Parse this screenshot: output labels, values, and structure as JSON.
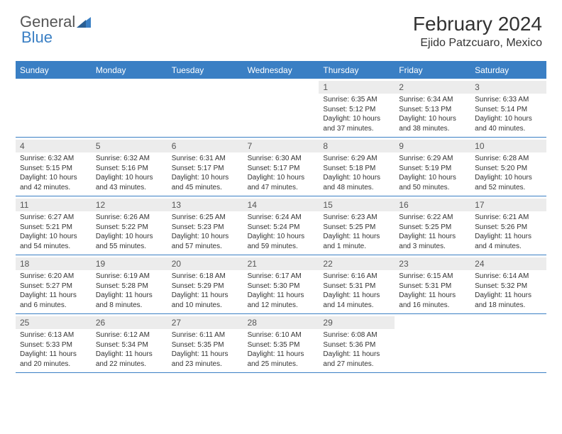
{
  "brand": {
    "part1": "General",
    "part2": "Blue"
  },
  "title": "February 2024",
  "location": "Ejido Patzcuaro, Mexico",
  "colors": {
    "accent": "#3a7fc4",
    "row_shade": "#ececec",
    "text": "#333333",
    "bg": "#ffffff"
  },
  "daysOfWeek": [
    "Sunday",
    "Monday",
    "Tuesday",
    "Wednesday",
    "Thursday",
    "Friday",
    "Saturday"
  ],
  "weeks": [
    [
      null,
      null,
      null,
      null,
      {
        "n": "1",
        "sr": "Sunrise: 6:35 AM",
        "ss": "Sunset: 5:12 PM",
        "dl1": "Daylight: 10 hours",
        "dl2": "and 37 minutes."
      },
      {
        "n": "2",
        "sr": "Sunrise: 6:34 AM",
        "ss": "Sunset: 5:13 PM",
        "dl1": "Daylight: 10 hours",
        "dl2": "and 38 minutes."
      },
      {
        "n": "3",
        "sr": "Sunrise: 6:33 AM",
        "ss": "Sunset: 5:14 PM",
        "dl1": "Daylight: 10 hours",
        "dl2": "and 40 minutes."
      }
    ],
    [
      {
        "n": "4",
        "sr": "Sunrise: 6:32 AM",
        "ss": "Sunset: 5:15 PM",
        "dl1": "Daylight: 10 hours",
        "dl2": "and 42 minutes."
      },
      {
        "n": "5",
        "sr": "Sunrise: 6:32 AM",
        "ss": "Sunset: 5:16 PM",
        "dl1": "Daylight: 10 hours",
        "dl2": "and 43 minutes."
      },
      {
        "n": "6",
        "sr": "Sunrise: 6:31 AM",
        "ss": "Sunset: 5:17 PM",
        "dl1": "Daylight: 10 hours",
        "dl2": "and 45 minutes."
      },
      {
        "n": "7",
        "sr": "Sunrise: 6:30 AM",
        "ss": "Sunset: 5:17 PM",
        "dl1": "Daylight: 10 hours",
        "dl2": "and 47 minutes."
      },
      {
        "n": "8",
        "sr": "Sunrise: 6:29 AM",
        "ss": "Sunset: 5:18 PM",
        "dl1": "Daylight: 10 hours",
        "dl2": "and 48 minutes."
      },
      {
        "n": "9",
        "sr": "Sunrise: 6:29 AM",
        "ss": "Sunset: 5:19 PM",
        "dl1": "Daylight: 10 hours",
        "dl2": "and 50 minutes."
      },
      {
        "n": "10",
        "sr": "Sunrise: 6:28 AM",
        "ss": "Sunset: 5:20 PM",
        "dl1": "Daylight: 10 hours",
        "dl2": "and 52 minutes."
      }
    ],
    [
      {
        "n": "11",
        "sr": "Sunrise: 6:27 AM",
        "ss": "Sunset: 5:21 PM",
        "dl1": "Daylight: 10 hours",
        "dl2": "and 54 minutes."
      },
      {
        "n": "12",
        "sr": "Sunrise: 6:26 AM",
        "ss": "Sunset: 5:22 PM",
        "dl1": "Daylight: 10 hours",
        "dl2": "and 55 minutes."
      },
      {
        "n": "13",
        "sr": "Sunrise: 6:25 AM",
        "ss": "Sunset: 5:23 PM",
        "dl1": "Daylight: 10 hours",
        "dl2": "and 57 minutes."
      },
      {
        "n": "14",
        "sr": "Sunrise: 6:24 AM",
        "ss": "Sunset: 5:24 PM",
        "dl1": "Daylight: 10 hours",
        "dl2": "and 59 minutes."
      },
      {
        "n": "15",
        "sr": "Sunrise: 6:23 AM",
        "ss": "Sunset: 5:25 PM",
        "dl1": "Daylight: 11 hours",
        "dl2": "and 1 minute."
      },
      {
        "n": "16",
        "sr": "Sunrise: 6:22 AM",
        "ss": "Sunset: 5:25 PM",
        "dl1": "Daylight: 11 hours",
        "dl2": "and 3 minutes."
      },
      {
        "n": "17",
        "sr": "Sunrise: 6:21 AM",
        "ss": "Sunset: 5:26 PM",
        "dl1": "Daylight: 11 hours",
        "dl2": "and 4 minutes."
      }
    ],
    [
      {
        "n": "18",
        "sr": "Sunrise: 6:20 AM",
        "ss": "Sunset: 5:27 PM",
        "dl1": "Daylight: 11 hours",
        "dl2": "and 6 minutes."
      },
      {
        "n": "19",
        "sr": "Sunrise: 6:19 AM",
        "ss": "Sunset: 5:28 PM",
        "dl1": "Daylight: 11 hours",
        "dl2": "and 8 minutes."
      },
      {
        "n": "20",
        "sr": "Sunrise: 6:18 AM",
        "ss": "Sunset: 5:29 PM",
        "dl1": "Daylight: 11 hours",
        "dl2": "and 10 minutes."
      },
      {
        "n": "21",
        "sr": "Sunrise: 6:17 AM",
        "ss": "Sunset: 5:30 PM",
        "dl1": "Daylight: 11 hours",
        "dl2": "and 12 minutes."
      },
      {
        "n": "22",
        "sr": "Sunrise: 6:16 AM",
        "ss": "Sunset: 5:31 PM",
        "dl1": "Daylight: 11 hours",
        "dl2": "and 14 minutes."
      },
      {
        "n": "23",
        "sr": "Sunrise: 6:15 AM",
        "ss": "Sunset: 5:31 PM",
        "dl1": "Daylight: 11 hours",
        "dl2": "and 16 minutes."
      },
      {
        "n": "24",
        "sr": "Sunrise: 6:14 AM",
        "ss": "Sunset: 5:32 PM",
        "dl1": "Daylight: 11 hours",
        "dl2": "and 18 minutes."
      }
    ],
    [
      {
        "n": "25",
        "sr": "Sunrise: 6:13 AM",
        "ss": "Sunset: 5:33 PM",
        "dl1": "Daylight: 11 hours",
        "dl2": "and 20 minutes."
      },
      {
        "n": "26",
        "sr": "Sunrise: 6:12 AM",
        "ss": "Sunset: 5:34 PM",
        "dl1": "Daylight: 11 hours",
        "dl2": "and 22 minutes."
      },
      {
        "n": "27",
        "sr": "Sunrise: 6:11 AM",
        "ss": "Sunset: 5:35 PM",
        "dl1": "Daylight: 11 hours",
        "dl2": "and 23 minutes."
      },
      {
        "n": "28",
        "sr": "Sunrise: 6:10 AM",
        "ss": "Sunset: 5:35 PM",
        "dl1": "Daylight: 11 hours",
        "dl2": "and 25 minutes."
      },
      {
        "n": "29",
        "sr": "Sunrise: 6:08 AM",
        "ss": "Sunset: 5:36 PM",
        "dl1": "Daylight: 11 hours",
        "dl2": "and 27 minutes."
      },
      null,
      null
    ]
  ]
}
